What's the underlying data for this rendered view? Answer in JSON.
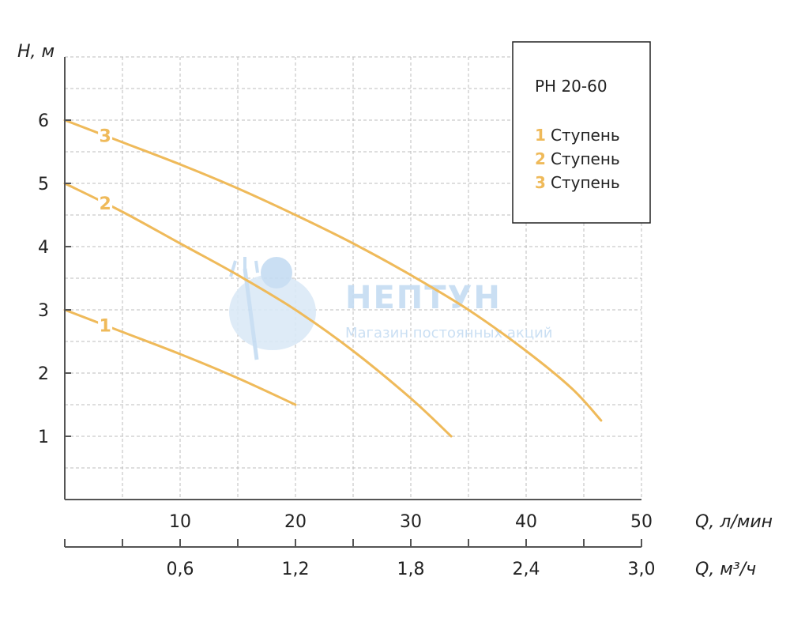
{
  "chart_data": {
    "type": "line",
    "title": "",
    "ylabel": "H, м",
    "xlabel": "Q, л/мин",
    "x2label": "Q, м³/ч",
    "ylim": [
      0,
      7
    ],
    "xlim": [
      0,
      50
    ],
    "y_ticks": [
      "1",
      "2",
      "3",
      "4",
      "5",
      "6"
    ],
    "x_ticks": [
      "10",
      "20",
      "30",
      "40",
      "50"
    ],
    "x2_ticks": [
      "0,6",
      "1,2",
      "1,8",
      "2,4",
      "3,0"
    ],
    "grid": true,
    "legend_position": "top-right",
    "series": [
      {
        "name": "1 Ступень",
        "label": "1",
        "points": [
          [
            0,
            3.0
          ],
          [
            5,
            2.65
          ],
          [
            10,
            2.3
          ],
          [
            15,
            1.92
          ],
          [
            20,
            1.5
          ]
        ]
      },
      {
        "name": "2 Ступень",
        "label": "2",
        "points": [
          [
            0,
            5.0
          ],
          [
            5,
            4.55
          ],
          [
            10,
            4.05
          ],
          [
            15,
            3.55
          ],
          [
            20,
            3.0
          ],
          [
            25,
            2.35
          ],
          [
            30,
            1.6
          ],
          [
            33.5,
            1.0
          ]
        ]
      },
      {
        "name": "3 Ступень",
        "label": "3",
        "points": [
          [
            0,
            6.0
          ],
          [
            5,
            5.65
          ],
          [
            10,
            5.3
          ],
          [
            15,
            4.92
          ],
          [
            20,
            4.5
          ],
          [
            25,
            4.05
          ],
          [
            30,
            3.55
          ],
          [
            35,
            3.0
          ],
          [
            40,
            2.35
          ],
          [
            44,
            1.75
          ],
          [
            46.5,
            1.25
          ]
        ]
      }
    ]
  },
  "legend": {
    "title": "PH 20-60",
    "items": [
      {
        "num": "1",
        "text": "Ступень"
      },
      {
        "num": "2",
        "text": "Ступень"
      },
      {
        "num": "3",
        "text": "Ступень"
      }
    ]
  },
  "watermark": {
    "title": "НЕПТУН",
    "subtitle": "Магазин постоянных акций"
  },
  "colors": {
    "curve": "#efba5a",
    "watermark": "#c5dcf2",
    "axis": "#555555",
    "grid": "#bcbcbc"
  }
}
